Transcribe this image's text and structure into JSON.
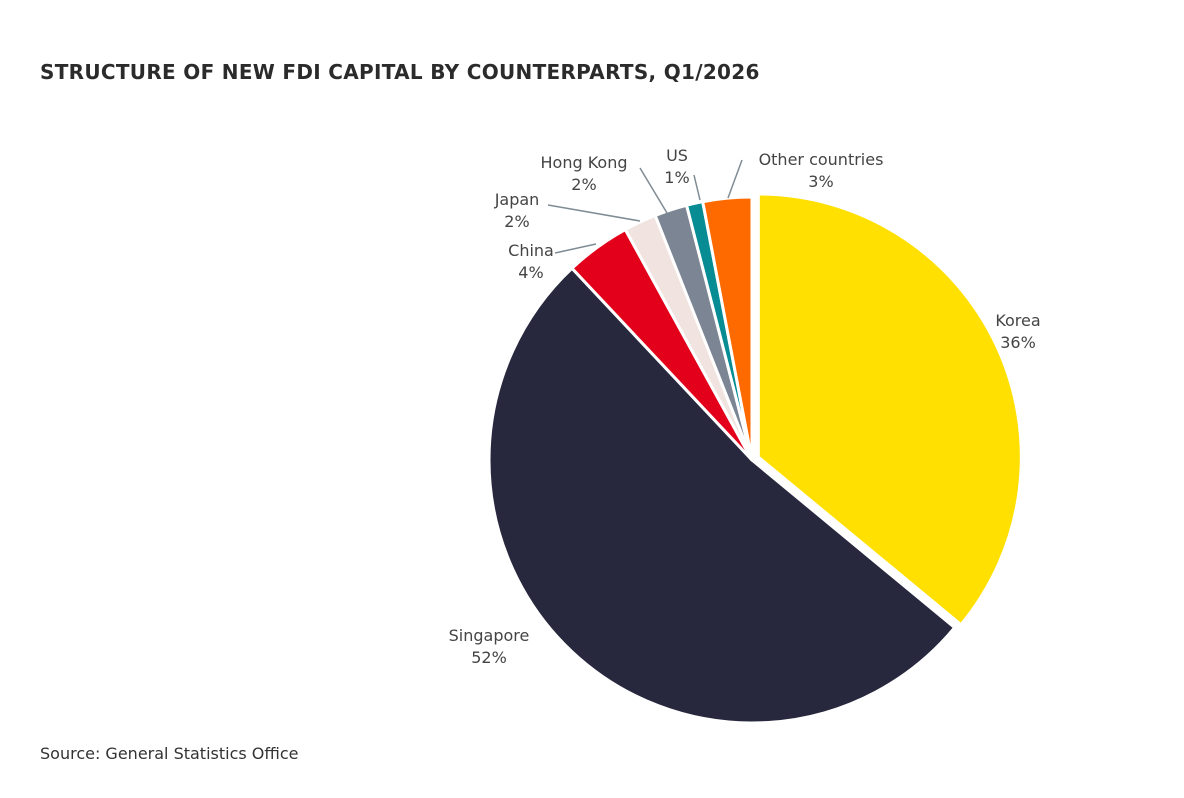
{
  "chart_data": {
    "type": "pie",
    "title": "STRUCTURE OF NEW FDI CAPITAL BY COUNTERPARTS, Q1/2026",
    "source": "Source: General Statistics Office",
    "slices": [
      {
        "label": "Korea",
        "value": 36,
        "value_label": "36%",
        "color": "#FFE000"
      },
      {
        "label": "Singapore",
        "value": 52,
        "value_label": "52%",
        "color": "#27273E"
      },
      {
        "label": "China",
        "value": 4,
        "value_label": "4%",
        "color": "#E3001B"
      },
      {
        "label": "Japan",
        "value": 2,
        "value_label": "2%",
        "color": "#F1E4E0"
      },
      {
        "label": "Hong Kong",
        "value": 2,
        "value_label": "2%",
        "color": "#7B8593"
      },
      {
        "label": "US",
        "value": 1,
        "value_label": "1%",
        "color": "#088C94"
      },
      {
        "label": "Other countries",
        "value": 3,
        "value_label": "3%",
        "color": "#FF6A00"
      }
    ],
    "start_angle_deg": 0,
    "direction": "clockwise",
    "exploded_slice": "Korea",
    "leader_color": "#7f8c94"
  }
}
